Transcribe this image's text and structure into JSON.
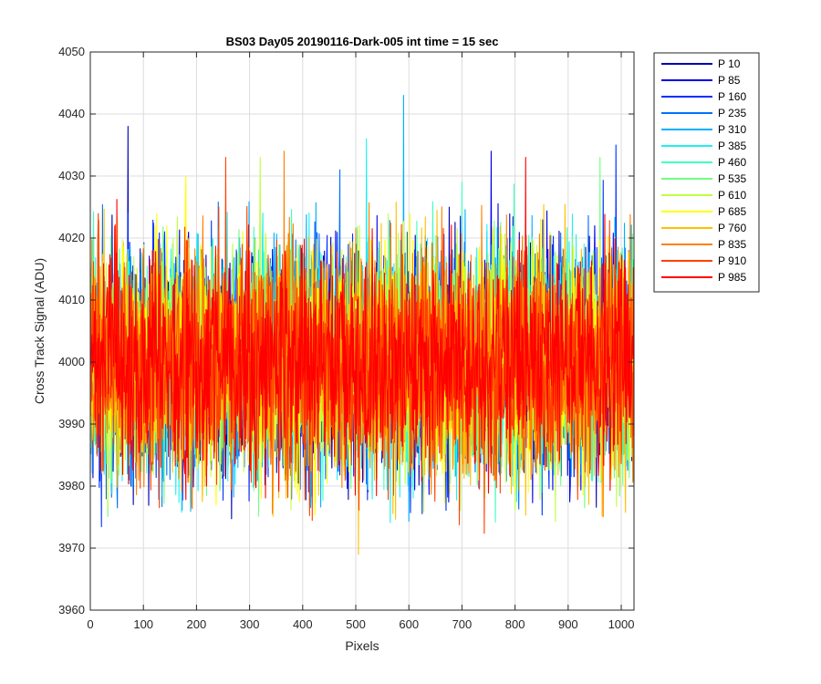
{
  "chart_data": {
    "type": "line",
    "title": "BS03 Day05 20190116-Dark-005 int time = 15 sec",
    "xlabel": "Pixels",
    "ylabel": "Cross Track Signal (ADU)",
    "xlim": [
      0,
      1024
    ],
    "ylim": [
      3960,
      4050
    ],
    "xticks": [
      0,
      100,
      200,
      300,
      400,
      500,
      600,
      700,
      800,
      900,
      1000
    ],
    "yticks": [
      3960,
      3970,
      3980,
      3990,
      4000,
      4010,
      4020,
      4030,
      4040,
      4050
    ],
    "grid": true,
    "legend_position": "outside-top-right",
    "noise_center": 4000,
    "noise_spread_typical": 10,
    "series": [
      {
        "name": "P 10",
        "color": "#0000b0",
        "peak": {
          "x": 71,
          "y": 4038
        }
      },
      {
        "name": "P 85",
        "color": "#0000e8",
        "peak": {
          "x": 755,
          "y": 4034
        }
      },
      {
        "name": "P 160",
        "color": "#0030ff",
        "peak": {
          "x": 990,
          "y": 4035
        }
      },
      {
        "name": "P 235",
        "color": "#0070ff",
        "peak": {
          "x": 470,
          "y": 4031
        }
      },
      {
        "name": "P 310",
        "color": "#00b0ff",
        "peak": {
          "x": 590,
          "y": 4043
        }
      },
      {
        "name": "P 385",
        "color": "#20f0f0",
        "peak": {
          "x": 520,
          "y": 4036
        }
      },
      {
        "name": "P 460",
        "color": "#40ffc0",
        "peak": {
          "x": 700,
          "y": 4029
        }
      },
      {
        "name": "P 535",
        "color": "#70ff80",
        "peak": {
          "x": 960,
          "y": 4033
        }
      },
      {
        "name": "P 610",
        "color": "#c0ff40",
        "peak": {
          "x": 320,
          "y": 4033
        }
      },
      {
        "name": "P 685",
        "color": "#ffff00",
        "peak": {
          "x": 180,
          "y": 4030
        }
      },
      {
        "name": "P 760",
        "color": "#ffc000",
        "peak": {
          "x": 505,
          "y": 3969
        }
      },
      {
        "name": "P 835",
        "color": "#ff8000",
        "peak": {
          "x": 365,
          "y": 4034
        }
      },
      {
        "name": "P 910",
        "color": "#ff4000",
        "peak": {
          "x": 255,
          "y": 4033
        }
      },
      {
        "name": "P 985",
        "color": "#ff0000",
        "peak": {
          "x": 820,
          "y": 4033
        }
      }
    ]
  }
}
